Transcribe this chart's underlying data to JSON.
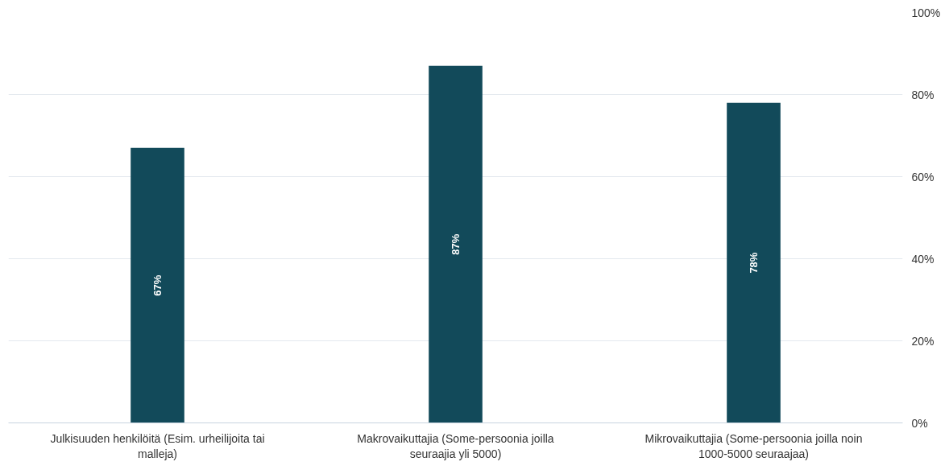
{
  "chart_data": {
    "type": "bar",
    "categories": [
      "Julkisuuden henkilöitä (Esim. urheilijoita tai malleja)",
      "Makrovaikuttajia (Some-persoonia joilla seuraajia yli 5000)",
      "Mikrovaikuttajia (Some-persoonia joilla noin 1000-5000 seuraajaa)"
    ],
    "values": [
      67,
      87,
      78
    ],
    "value_labels": [
      "67%",
      "87%",
      "78%"
    ],
    "color": "#124a5a",
    "ylim": [
      0,
      100
    ],
    "yticks": [
      {
        "value": 0,
        "label": "0%"
      },
      {
        "value": 20,
        "label": "20%"
      },
      {
        "value": 40,
        "label": "40%"
      },
      {
        "value": 60,
        "label": "60%"
      },
      {
        "value": 80,
        "label": "80%"
      },
      {
        "value": 100,
        "label": "100%"
      }
    ],
    "grid": "y"
  }
}
